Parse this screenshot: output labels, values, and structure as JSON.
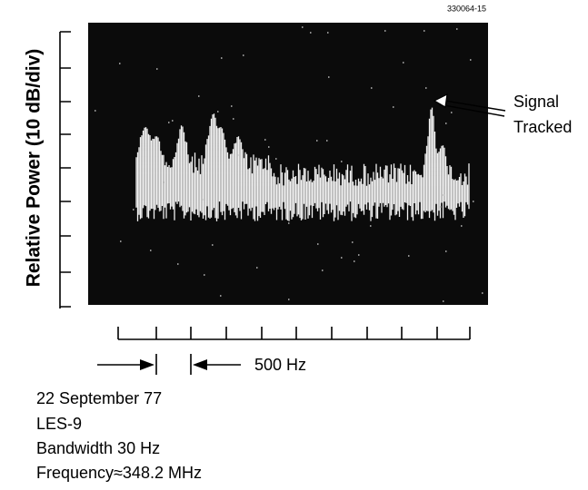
{
  "figure_id": "330064-15",
  "y_axis_label": "Relative Power (10 dB/div)",
  "annotation": [
    "Signal",
    "Tracked"
  ],
  "scale_label": "500 Hz",
  "caption": [
    "22 September 77",
    "LES-9",
    "Bandwidth 30 Hz",
    "Frequency≈348.2 MHz"
  ]
}
